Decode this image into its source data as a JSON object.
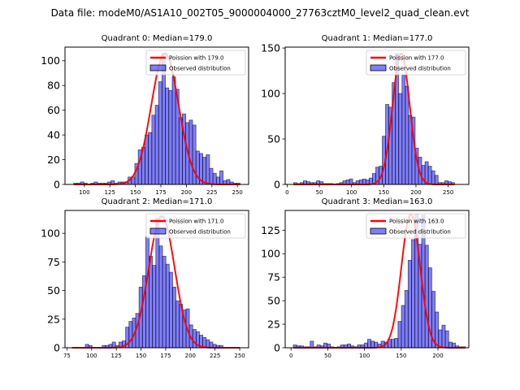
{
  "figure": {
    "suptitle": "Data file: modeM0/AS1A10_002T05_9000004000_27763cztM0_level2_quad_clean.evt"
  },
  "colors": {
    "bar_fill": "#0000ff",
    "bar_fill_alpha": 0.5,
    "bar_edge": "#000000",
    "poisson_line": "#ff0000"
  },
  "chart_data": [
    {
      "type": "bar",
      "title": "Quadrant 0: Median=179.0",
      "xlabel": "",
      "ylabel": "",
      "xlim": [
        81,
        261
      ],
      "ylim": [
        0,
        111
      ],
      "xticks": [
        100,
        125,
        150,
        175,
        200,
        225,
        250
      ],
      "yticks": [
        0,
        20,
        40,
        60,
        80,
        100
      ],
      "grid": false,
      "legend": {
        "placement": "upper-right",
        "entries": [
          "Poission with 179.0",
          "Observed distribution"
        ]
      },
      "poisson_mean": 179.0,
      "poisson_peak": 106,
      "hist": {
        "bin_start": 89.5,
        "bin_width": 3.33,
        "counts": [
          1,
          1,
          2,
          1,
          0,
          1,
          2,
          1,
          1,
          1,
          2,
          3,
          1,
          2,
          2,
          2,
          6,
          6,
          17,
          28,
          30,
          40,
          42,
          56,
          64,
          83,
          106,
          78,
          76,
          87,
          77,
          54,
          57,
          50,
          52,
          48,
          27,
          25,
          22,
          24,
          13,
          9,
          6,
          11,
          3,
          4,
          2,
          1,
          1
        ]
      },
      "series": [
        {
          "name": "Poission with 179.0",
          "kind": "line"
        },
        {
          "name": "Observed distribution",
          "kind": "histogram"
        }
      ]
    },
    {
      "type": "bar",
      "title": "Quadrant 1: Median=177.0",
      "xlabel": "",
      "ylabel": "",
      "xlim": [
        -3,
        282
      ],
      "ylim": [
        0,
        151
      ],
      "xticks": [
        0,
        50,
        100,
        150,
        200,
        250
      ],
      "yticks": [
        0,
        50,
        100,
        150
      ],
      "grid": false,
      "legend": {
        "placement": "upper-right",
        "entries": [
          "Poission with 177.0",
          "Observed distribution"
        ]
      },
      "poisson_mean": 177.0,
      "poisson_peak": 144,
      "hist": {
        "bin_start": 10,
        "bin_width": 5.1,
        "counts": [
          2,
          1,
          2,
          4,
          3,
          2,
          2,
          4,
          3,
          1,
          1,
          1,
          0,
          1,
          2,
          4,
          5,
          6,
          2,
          4,
          5,
          6,
          5,
          7,
          12,
          19,
          20,
          53,
          88,
          85,
          112,
          144,
          100,
          120,
          108,
          76,
          74,
          40,
          30,
          21,
          25,
          20,
          15,
          10,
          2,
          2,
          4,
          3,
          2
        ]
      },
      "series": [
        {
          "name": "Poission with 177.0",
          "kind": "line"
        },
        {
          "name": "Observed distribution",
          "kind": "histogram"
        }
      ]
    },
    {
      "type": "bar",
      "title": "Quadrant 2: Median=171.0",
      "xlabel": "",
      "ylabel": "",
      "xlim": [
        73,
        259
      ],
      "ylim": [
        0,
        120
      ],
      "xticks": [
        75,
        100,
        125,
        150,
        175,
        200,
        225,
        250
      ],
      "yticks": [
        0,
        25,
        50,
        75,
        100
      ],
      "grid": false,
      "legend": {
        "placement": "upper-right",
        "entries": [
          "Poission with 171.0",
          "Observed distribution"
        ]
      },
      "poisson_mean": 171.0,
      "poisson_peak": 115,
      "hist": {
        "bin_start": 80,
        "bin_width": 3.4,
        "counts": [
          0,
          0,
          0,
          0,
          3,
          2,
          0,
          0,
          0,
          2,
          2,
          3,
          5,
          2,
          5,
          6,
          18,
          23,
          26,
          30,
          53,
          63,
          97,
          80,
          72,
          113,
          89,
          80,
          73,
          66,
          53,
          41,
          38,
          33,
          34,
          20,
          16,
          14,
          11,
          9,
          7,
          5,
          3,
          2,
          2,
          0,
          0,
          0,
          0,
          0
        ]
      },
      "series": [
        {
          "name": "Poission with 171.0",
          "kind": "line"
        },
        {
          "name": "Observed distribution",
          "kind": "histogram"
        }
      ]
    },
    {
      "type": "bar",
      "title": "Quadrant 3: Median=163.0",
      "xlabel": "",
      "ylabel": "",
      "xlim": [
        -8,
        242
      ],
      "ylim": [
        0,
        146
      ],
      "xticks": [
        0,
        50,
        100,
        150,
        200
      ],
      "yticks": [
        0,
        25,
        50,
        75,
        100,
        125
      ],
      "grid": false,
      "legend": {
        "placement": "upper-right",
        "entries": [
          "Poission with 163.0",
          "Observed distribution"
        ]
      },
      "poisson_mean": 163.0,
      "poisson_peak": 142,
      "hist": {
        "bin_start": 3,
        "bin_width": 4.6,
        "counts": [
          3,
          2,
          2,
          1,
          1,
          7,
          1,
          3,
          2,
          5,
          4,
          1,
          0,
          1,
          3,
          3,
          4,
          2,
          1,
          3,
          3,
          5,
          9,
          7,
          6,
          4,
          7,
          6,
          9,
          9,
          10,
          28,
          45,
          61,
          93,
          115,
          142,
          110,
          141,
          109,
          85,
          60,
          38,
          19,
          24,
          18,
          6,
          5,
          2,
          1,
          1
        ]
      },
      "series": [
        {
          "name": "Poission with 163.0",
          "kind": "line"
        },
        {
          "name": "Observed distribution",
          "kind": "histogram"
        }
      ]
    }
  ]
}
